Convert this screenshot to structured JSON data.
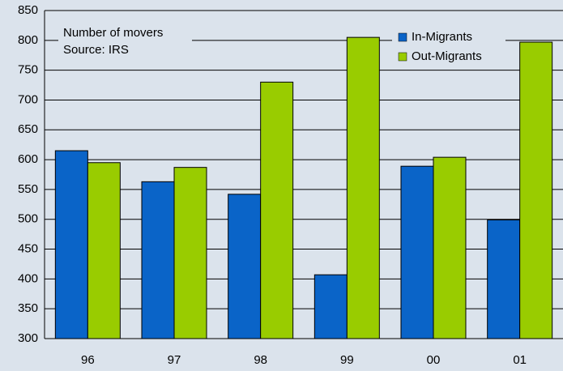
{
  "chart_data": {
    "type": "bar",
    "annotations": [
      "Number of movers",
      "Source: IRS"
    ],
    "categories": [
      "96",
      "97",
      "98",
      "99",
      "00",
      "01"
    ],
    "series": [
      {
        "name": "In-Migrants",
        "color": "#0a64c8",
        "values": [
          615,
          563,
          542,
          407,
          589,
          499
        ]
      },
      {
        "name": "Out-Migrants",
        "color": "#99cc00",
        "values": [
          595,
          587,
          730,
          805,
          604,
          797
        ]
      }
    ],
    "ylim": [
      300,
      850
    ],
    "yticks": [
      300,
      350,
      400,
      450,
      500,
      550,
      600,
      650,
      700,
      750,
      800,
      850
    ],
    "grid": true,
    "legend": "top-right"
  }
}
